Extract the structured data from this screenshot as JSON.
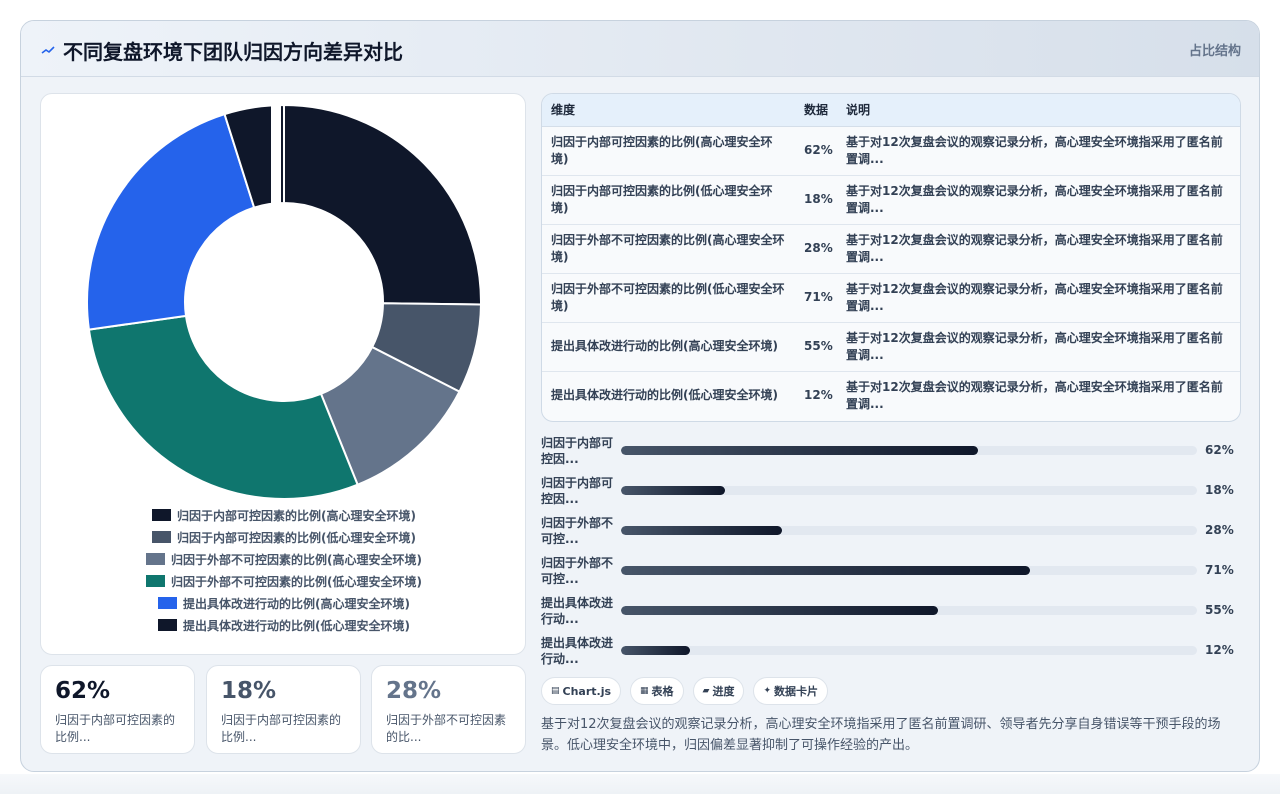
{
  "header": {
    "icon": "pulse-icon",
    "title": "不同复盘环境下团队归因方向差异对比",
    "tag": "占比结构"
  },
  "colors": {
    "palette": [
      "#0f172a",
      "#475569",
      "#64748b",
      "#0f766e",
      "#2563eb",
      "#0f172a"
    ]
  },
  "chart_data": {
    "type": "pie",
    "donut": true,
    "legend_position": "bottom",
    "categories": [
      "归因于内部可控因素的比例(高心理安全环境)",
      "归因于内部可控因素的比例(低心理安全环境)",
      "归因于外部不可控因素的比例(高心理安全环境)",
      "归因于外部不可控因素的比例(低心理安全环境)",
      "提出具体改进行动的比例(高心理安全环境)",
      "提出具体改进行动的比例(低心理安全环境)"
    ],
    "values": [
      62,
      18,
      28,
      71,
      55,
      12
    ],
    "unit": "%"
  },
  "legend": {
    "items": [
      "归因于内部可控因素的比例(高心理安全环境)",
      "归因于内部可控因素的比例(低心理安全环境)",
      "归因于外部不可控因素的比例(高心理安全环境)",
      "归因于外部不可控因素的比例(低心理安全环境)",
      "提出具体改进行动的比例(高心理安全环境)",
      "提出具体改进行动的比例(低心理安全环境)"
    ]
  },
  "stats": [
    {
      "value": "62%",
      "label": "归因于内部可控因素的比例...",
      "color": "#0f172a"
    },
    {
      "value": "18%",
      "label": "归因于内部可控因素的比例...",
      "color": "#475569"
    },
    {
      "value": "28%",
      "label": "归因于外部不可控因素的比...",
      "color": "#64748b"
    }
  ],
  "table": {
    "headers": [
      "维度",
      "数据",
      "说明"
    ],
    "rows": [
      {
        "dim": "归因于内部可控因素的比例(高心理安全环境)",
        "val": "62%",
        "note": "基于对12次复盘会议的观察记录分析，高心理安全环境指采用了匿名前置调..."
      },
      {
        "dim": "归因于内部可控因素的比例(低心理安全环境)",
        "val": "18%",
        "note": "基于对12次复盘会议的观察记录分析，高心理安全环境指采用了匿名前置调..."
      },
      {
        "dim": "归因于外部不可控因素的比例(高心理安全环境)",
        "val": "28%",
        "note": "基于对12次复盘会议的观察记录分析，高心理安全环境指采用了匿名前置调..."
      },
      {
        "dim": "归因于外部不可控因素的比例(低心理安全环境)",
        "val": "71%",
        "note": "基于对12次复盘会议的观察记录分析，高心理安全环境指采用了匿名前置调..."
      },
      {
        "dim": "提出具体改进行动的比例(高心理安全环境)",
        "val": "55%",
        "note": "基于对12次复盘会议的观察记录分析，高心理安全环境指采用了匿名前置调..."
      },
      {
        "dim": "提出具体改进行动的比例(低心理安全环境)",
        "val": "12%",
        "note": "基于对12次复盘会议的观察记录分析，高心理安全环境指采用了匿名前置调..."
      }
    ]
  },
  "bars": [
    {
      "label": "归因于内部可控因...",
      "value": 62,
      "value_text": "62%"
    },
    {
      "label": "归因于内部可控因...",
      "value": 18,
      "value_text": "18%"
    },
    {
      "label": "归因于外部不可控...",
      "value": 28,
      "value_text": "28%"
    },
    {
      "label": "归因于外部不可控...",
      "value": 71,
      "value_text": "71%"
    },
    {
      "label": "提出具体改进行动...",
      "value": 55,
      "value_text": "55%"
    },
    {
      "label": "提出具体改进行动...",
      "value": 12,
      "value_text": "12%"
    }
  ],
  "chips": [
    {
      "icon": "chart-icon",
      "glyph": "▤",
      "label": "Chart.js"
    },
    {
      "icon": "table-icon",
      "glyph": "▦",
      "label": "表格"
    },
    {
      "icon": "progress-icon",
      "glyph": "▰",
      "label": "进度"
    },
    {
      "icon": "sparkle-icon",
      "glyph": "✦",
      "label": "数据卡片"
    }
  ],
  "description": "基于对12次复盘会议的观察记录分析，高心理安全环境指采用了匿名前置调研、领导者先分享自身错误等干预手段的场景。低心理安全环境中，归因偏差显著抑制了可操作经验的产出。"
}
